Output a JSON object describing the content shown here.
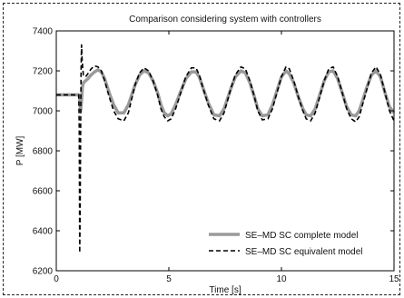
{
  "chart_data": {
    "type": "line",
    "title": "Comparison considering system with controllers",
    "xlabel": "Time [s]",
    "ylabel": "P [MW]",
    "xlim": [
      0,
      15
    ],
    "ylim": [
      6200,
      7400
    ],
    "xticks": [
      0,
      5,
      10,
      15
    ],
    "yticks": [
      6200,
      6400,
      6600,
      6800,
      7000,
      7200,
      7400
    ],
    "grid": false,
    "legend_position": "bottom-right",
    "series": [
      {
        "name": "SE–MD SC complete model",
        "style": "solid",
        "color": "#9a9a9a",
        "x": [
          0,
          1.0,
          1.04,
          1.08,
          1.12,
          1.16,
          1.2,
          1.3,
          1.4,
          1.55,
          1.7,
          1.85,
          2.0,
          2.15,
          2.35,
          2.55,
          2.75,
          3.0,
          3.2,
          3.35,
          3.5,
          3.7,
          3.9,
          4.1,
          4.3,
          4.5,
          4.65,
          4.8,
          4.95,
          5.1,
          5.3,
          5.5,
          5.75,
          6.0,
          6.2,
          6.35,
          6.5,
          6.75,
          7.0,
          7.25,
          7.45,
          7.6,
          7.75,
          7.95,
          8.2,
          8.4,
          8.6,
          8.8,
          8.95,
          9.15,
          9.4,
          9.6,
          9.8,
          10.0,
          10.2,
          10.35,
          10.55,
          10.75,
          10.95,
          11.1,
          11.3,
          11.5,
          11.7,
          11.9,
          12.1,
          12.3,
          12.5,
          12.7,
          12.9,
          13.1,
          13.3,
          13.45,
          13.6,
          13.8,
          14.0,
          14.2,
          14.4,
          14.6,
          14.8,
          15.0
        ],
        "y": [
          7080,
          7080,
          7060,
          7000,
          7050,
          7120,
          7140,
          7150,
          7160,
          7180,
          7195,
          7205,
          7195,
          7160,
          7090,
          7030,
          6990,
          6990,
          7030,
          7080,
          7130,
          7180,
          7200,
          7190,
          7150,
          7090,
          7030,
          6990,
          6975,
          6985,
          7030,
          7090,
          7160,
          7195,
          7195,
          7170,
          7120,
          7040,
          6980,
          6975,
          7010,
          7060,
          7110,
          7170,
          7200,
          7190,
          7140,
          7070,
          7010,
          6975,
          6980,
          7030,
          7100,
          7170,
          7200,
          7185,
          7140,
          7070,
          7010,
          6980,
          6975,
          7010,
          7080,
          7150,
          7195,
          7200,
          7160,
          7090,
          7020,
          6980,
          6975,
          7000,
          7050,
          7120,
          7180,
          7200,
          7170,
          7090,
          7020,
          6990
        ]
      },
      {
        "name": "SE–MD SC equivalent model",
        "style": "dashed",
        "color": "#000000",
        "x": [
          0,
          1.0,
          1.02,
          1.04,
          1.06,
          1.08,
          1.1,
          1.12,
          1.15,
          1.2,
          1.3,
          1.4,
          1.55,
          1.7,
          1.85,
          2.0,
          2.15,
          2.35,
          2.55,
          2.75,
          3.0,
          3.2,
          3.35,
          3.5,
          3.7,
          3.9,
          4.1,
          4.3,
          4.5,
          4.65,
          4.8,
          4.95,
          5.1,
          5.3,
          5.5,
          5.75,
          6.0,
          6.2,
          6.35,
          6.5,
          6.75,
          7.0,
          7.25,
          7.45,
          7.6,
          7.75,
          7.95,
          8.2,
          8.4,
          8.6,
          8.8,
          8.95,
          9.15,
          9.4,
          9.6,
          9.8,
          10.0,
          10.2,
          10.35,
          10.55,
          10.75,
          10.95,
          11.1,
          11.3,
          11.5,
          11.7,
          11.9,
          12.1,
          12.3,
          12.5,
          12.7,
          12.9,
          13.1,
          13.3,
          13.45,
          13.6,
          13.8,
          14.0,
          14.2,
          14.4,
          14.6,
          14.8,
          15.0
        ],
        "y": [
          7080,
          7080,
          6900,
          6290,
          6500,
          6900,
          7200,
          7330,
          7250,
          7180,
          7170,
          7185,
          7210,
          7225,
          7220,
          7200,
          7150,
          7070,
          7000,
          6960,
          6950,
          6990,
          7060,
          7130,
          7190,
          7215,
          7200,
          7150,
          7080,
          7010,
          6970,
          6950,
          6960,
          7010,
          7080,
          7170,
          7215,
          7215,
          7180,
          7120,
          7030,
          6960,
          6950,
          6990,
          7050,
          7110,
          7180,
          7220,
          7210,
          7150,
          7070,
          7000,
          6955,
          6960,
          7010,
          7090,
          7170,
          7220,
          7210,
          7150,
          7070,
          7000,
          6960,
          6950,
          6990,
          7070,
          7150,
          7210,
          7220,
          7170,
          7090,
          7010,
          6960,
          6945,
          6970,
          7030,
          7110,
          7190,
          7220,
          7180,
          7090,
          7000,
          6950
        ]
      }
    ]
  }
}
